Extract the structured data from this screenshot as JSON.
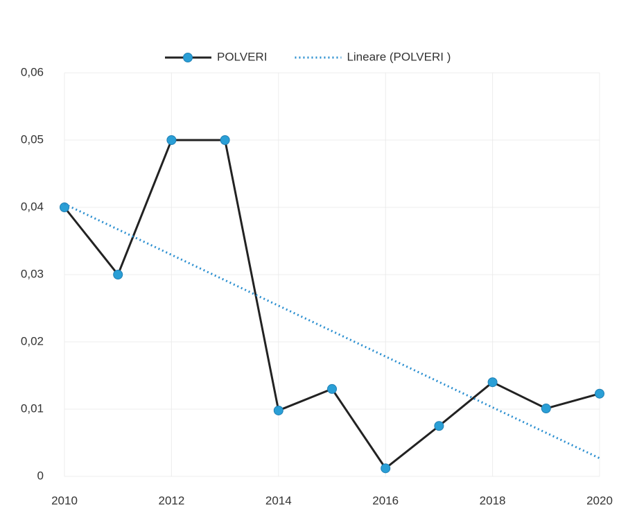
{
  "chart_data": {
    "type": "line",
    "x": [
      2010,
      2011,
      2012,
      2013,
      2014,
      2015,
      2016,
      2017,
      2018,
      2019,
      2020
    ],
    "series": [
      {
        "name": "POLVERI",
        "color": "#222222",
        "marker_color": "#2a9fd6",
        "dash": "solid",
        "values": [
          0.04,
          0.03,
          0.05,
          0.05,
          0.0098,
          0.013,
          0.0012,
          0.0075,
          0.014,
          0.0101,
          0.0123
        ]
      },
      {
        "name": "Lineare (POLVERI )",
        "color": "#2b8fd0",
        "dash": "dotted",
        "x": [
          2010,
          2020
        ],
        "values": [
          0.0405,
          0.0027
        ]
      }
    ],
    "xlim": [
      2010,
      2020
    ],
    "xticks": [
      2010,
      2012,
      2014,
      2016,
      2018,
      2020
    ],
    "ylim": [
      0,
      0.06
    ],
    "yticks": [
      0,
      {
        "value": 0.01,
        "label": "0,01"
      },
      {
        "value": 0.02,
        "label": "0,02"
      },
      {
        "value": 0.03,
        "label": "0,03"
      },
      {
        "value": 0.04,
        "label": "0,04"
      },
      {
        "value": 0.05,
        "label": "0,05"
      },
      {
        "value": 0.06,
        "label": "0,06"
      }
    ],
    "grid": true,
    "legend": "top"
  }
}
